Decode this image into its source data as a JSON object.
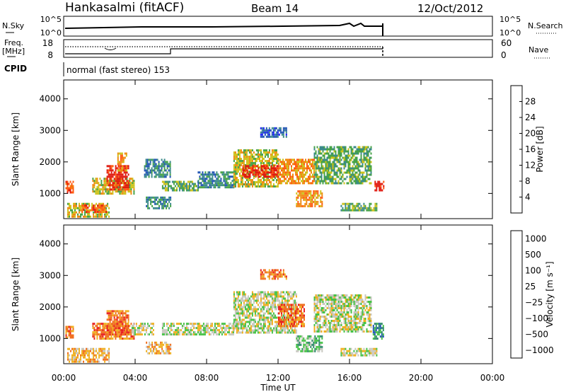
{
  "header": {
    "station": "Hankasalmi (fitACF)",
    "beam": "Beam 14",
    "date": "12/Oct/2012"
  },
  "strip_panels": {
    "nsky": {
      "label": "N.Sky",
      "ticks_left": [
        "10^5",
        "10^0"
      ],
      "ticks_right": [
        "10^5",
        "10^0"
      ],
      "right_label": "N.Search"
    },
    "freq": {
      "label_top": "Freq.",
      "label_bottom": "[MHz]",
      "ticks_left": [
        "18",
        "8"
      ],
      "ticks_right": [
        "60",
        "0"
      ],
      "right_label": "Nave"
    },
    "cpid": {
      "label": "CPID",
      "value": "normal (fast stereo) 153"
    }
  },
  "x_axis": {
    "label": "Time UT",
    "ticks": [
      "00:00",
      "04:00",
      "08:00",
      "12:00",
      "16:00",
      "20:00",
      "00:00"
    ]
  },
  "chart_data": [
    {
      "type": "heatmap",
      "title": "",
      "ylabel": "Slant Range [km]",
      "yticks": [
        "1000",
        "2000",
        "3000",
        "4000"
      ],
      "ylim": [
        200,
        4600
      ],
      "xlim_hours": [
        0,
        24
      ],
      "colorbar": {
        "label": "Power [dB]",
        "ticks": [
          "4",
          "8",
          "12",
          "16",
          "20",
          "24",
          "28"
        ],
        "colors": [
          "#1a1aff",
          "#2255b4",
          "#3a8a8a",
          "#46a246",
          "#ccc31a",
          "#f08a10",
          "#ff5a10",
          "#e01a10"
        ]
      },
      "regions": [
        {
          "t": [
            0.1,
            0.5
          ],
          "r": [
            1000,
            1400
          ],
          "level": 6
        },
        {
          "t": [
            0.2,
            2.5
          ],
          "r": [
            250,
            700
          ],
          "level": 4
        },
        {
          "t": [
            1.0,
            2.4
          ],
          "r": [
            400,
            650
          ],
          "level": 6
        },
        {
          "t": [
            1.6,
            3.9
          ],
          "r": [
            1000,
            1500
          ],
          "level": 4
        },
        {
          "t": [
            2.4,
            3.6
          ],
          "r": [
            1100,
            1900
          ],
          "level": 7
        },
        {
          "t": [
            3.0,
            3.5
          ],
          "r": [
            1700,
            2300
          ],
          "level": 5
        },
        {
          "t": [
            4.5,
            6.0
          ],
          "r": [
            1500,
            2100
          ],
          "level": 2
        },
        {
          "t": [
            4.6,
            6.0
          ],
          "r": [
            500,
            900
          ],
          "level": 2
        },
        {
          "t": [
            5.5,
            7.5
          ],
          "r": [
            1100,
            1400
          ],
          "level": 3
        },
        {
          "t": [
            7.5,
            9.5
          ],
          "r": [
            1200,
            1700
          ],
          "level": 2
        },
        {
          "t": [
            9.5,
            12.0
          ],
          "r": [
            1200,
            2400
          ],
          "level": 4
        },
        {
          "t": [
            10.0,
            12.0
          ],
          "r": [
            1500,
            1900
          ],
          "level": 7
        },
        {
          "t": [
            12.0,
            14.0
          ],
          "r": [
            1300,
            2100
          ],
          "level": 5
        },
        {
          "t": [
            13.0,
            14.5
          ],
          "r": [
            600,
            1100
          ],
          "level": 5
        },
        {
          "t": [
            14.0,
            17.2
          ],
          "r": [
            1300,
            2500
          ],
          "level": 3
        },
        {
          "t": [
            15.5,
            17.5
          ],
          "r": [
            450,
            700
          ],
          "level": 3
        },
        {
          "t": [
            17.4,
            17.9
          ],
          "r": [
            1100,
            1400
          ],
          "level": 7
        },
        {
          "t": [
            11.0,
            12.5
          ],
          "r": [
            2800,
            3100
          ],
          "level": 1
        }
      ]
    },
    {
      "type": "heatmap",
      "title": "",
      "ylabel": "Slant Range [km]",
      "yticks": [
        "1000",
        "2000",
        "3000",
        "4000"
      ],
      "ylim": [
        200,
        4600
      ],
      "xlim_hours": [
        0,
        24
      ],
      "colorbar": {
        "label": "Velocity [m s⁻¹]",
        "ticks": [
          "1000",
          "500",
          "100",
          "25",
          "−25",
          "−100",
          "−500",
          "−1000"
        ],
        "colors": [
          "#1a1aff",
          "#2255b4",
          "#2e8a6a",
          "#46c246",
          "#c8c8c0",
          "#f0b020",
          "#f07020",
          "#e82020"
        ]
      },
      "regions": [
        {
          "t": [
            0.1,
            0.5
          ],
          "r": [
            1000,
            1400
          ],
          "level": 6
        },
        {
          "t": [
            0.2,
            2.5
          ],
          "r": [
            250,
            700
          ],
          "level": 5
        },
        {
          "t": [
            1.6,
            3.9
          ],
          "r": [
            1000,
            1500
          ],
          "level": 6
        },
        {
          "t": [
            2.4,
            3.6
          ],
          "r": [
            1100,
            1900
          ],
          "level": 6
        },
        {
          "t": [
            3.8,
            5.0
          ],
          "r": [
            1100,
            1500
          ],
          "level": 4
        },
        {
          "t": [
            4.6,
            6.0
          ],
          "r": [
            500,
            900
          ],
          "level": 5
        },
        {
          "t": [
            5.5,
            9.5
          ],
          "r": [
            1100,
            1500
          ],
          "level": 4
        },
        {
          "t": [
            9.5,
            13.0
          ],
          "r": [
            1200,
            2500
          ],
          "level": 4
        },
        {
          "t": [
            12.0,
            13.5
          ],
          "r": [
            1400,
            2100
          ],
          "level": 6
        },
        {
          "t": [
            13.0,
            14.5
          ],
          "r": [
            600,
            1100
          ],
          "level": 3
        },
        {
          "t": [
            14.0,
            17.2
          ],
          "r": [
            1200,
            2400
          ],
          "level": 4
        },
        {
          "t": [
            15.5,
            17.5
          ],
          "r": [
            450,
            700
          ],
          "level": 4
        },
        {
          "t": [
            17.3,
            17.9
          ],
          "r": [
            1000,
            1500
          ],
          "level": 2
        },
        {
          "t": [
            11.0,
            12.5
          ],
          "r": [
            2900,
            3200
          ],
          "level": 6
        }
      ]
    }
  ]
}
